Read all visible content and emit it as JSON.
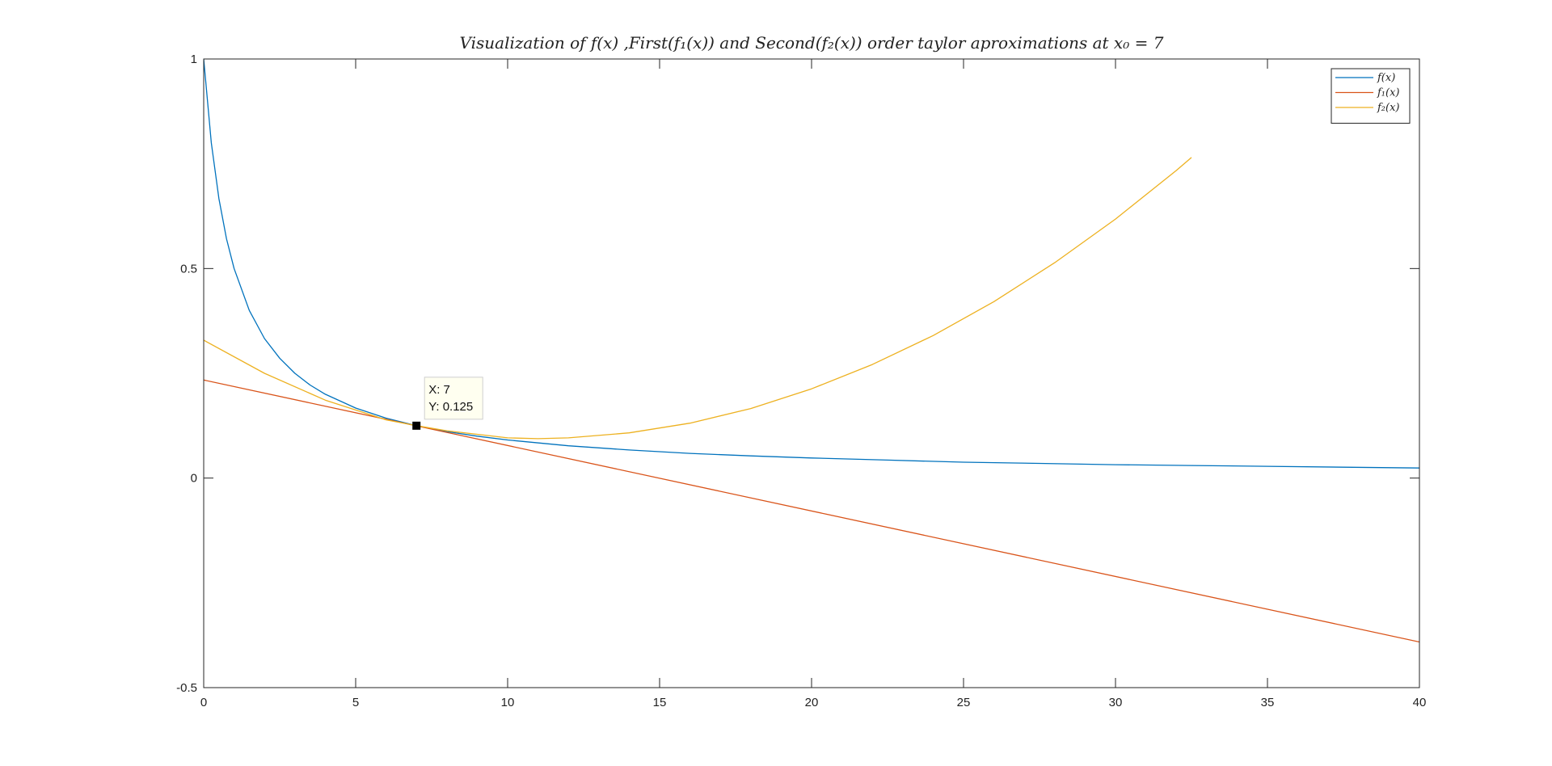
{
  "chart_data": {
    "type": "line",
    "title": "Visualization of f(x) ,First(f₁(x)) and Second(f₂(x)) order taylor aproximations at x₀ = 7",
    "xlabel": "",
    "ylabel": "",
    "xlim": [
      0,
      40
    ],
    "ylim": [
      -0.5,
      1
    ],
    "xticks": [
      0,
      5,
      10,
      15,
      20,
      25,
      30,
      35,
      40
    ],
    "xtick_labels": [
      "0",
      "5",
      "10",
      "15",
      "20",
      "25",
      "30",
      "35",
      "40"
    ],
    "yticks": [
      -0.5,
      0,
      0.5,
      1
    ],
    "ytick_labels": [
      "-0.5",
      "0",
      "0.5",
      "1"
    ],
    "grid": false,
    "legend_position": "top-right",
    "series": [
      {
        "name": "f(x)",
        "color": "#0072BD",
        "x": [
          0,
          0.25,
          0.5,
          0.75,
          1,
          1.5,
          2,
          2.5,
          3,
          3.5,
          4,
          5,
          6,
          7,
          8,
          9,
          10,
          12,
          14,
          16,
          18,
          20,
          22.5,
          25,
          27.5,
          30,
          32.5,
          35,
          37.5,
          40
        ],
        "y": [
          1,
          0.8,
          0.667,
          0.571,
          0.5,
          0.4,
          0.333,
          0.286,
          0.25,
          0.222,
          0.2,
          0.167,
          0.143,
          0.125,
          0.111,
          0.1,
          0.091,
          0.077,
          0.067,
          0.059,
          0.053,
          0.048,
          0.043,
          0.038,
          0.035,
          0.032,
          0.03,
          0.028,
          0.026,
          0.024
        ]
      },
      {
        "name": "f₁(x)",
        "color": "#D95319",
        "x": [
          0,
          40
        ],
        "y": [
          0.234,
          -0.391
        ]
      },
      {
        "name": "f₂(x)",
        "color": "#EDB120",
        "x": [
          0,
          2,
          4,
          6,
          7,
          8,
          10,
          11,
          12,
          14,
          16,
          18,
          20,
          22,
          24,
          26,
          28,
          30,
          32,
          32.5
        ],
        "y": [
          0.329,
          0.25,
          0.186,
          0.139,
          0.125,
          0.113,
          0.096,
          0.094,
          0.096,
          0.108,
          0.131,
          0.166,
          0.213,
          0.271,
          0.34,
          0.421,
          0.514,
          0.618,
          0.734,
          0.765
        ]
      }
    ],
    "annotations": [
      {
        "type": "datatip",
        "x": 7,
        "y": 0.125,
        "lines": [
          "X: 7",
          "Y: 0.125"
        ]
      }
    ]
  }
}
